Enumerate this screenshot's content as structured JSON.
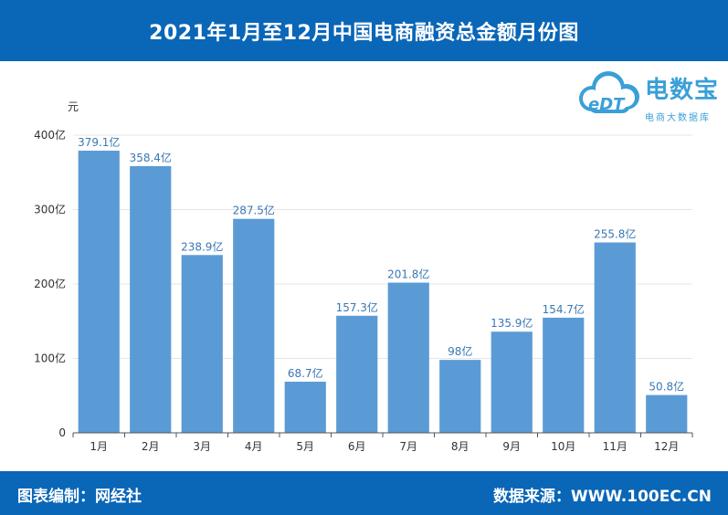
{
  "header": {
    "title": "2021年1月至12月中国电商融资总金额月份图"
  },
  "logo": {
    "brand": "电数宝",
    "tagline": "电商大数据库",
    "mark": "eDT"
  },
  "footer": {
    "credit": "图表编制：网经社",
    "source": "数据来源：WWW.100EC.CN"
  },
  "colors": {
    "header": "#0a66b7",
    "bar": "#5b9bd5",
    "label": "#3a78b5"
  },
  "chart_data": {
    "type": "bar",
    "title": "2021年1月至12月中国电商融资总金额月份图",
    "ylabel": "元",
    "xlabel": "",
    "ylim": [
      0,
      400
    ],
    "yticks": [
      0,
      100,
      200,
      300,
      400
    ],
    "ytick_labels": [
      "0",
      "100亿",
      "200亿",
      "300亿",
      "400亿"
    ],
    "grid": true,
    "categories": [
      "1月",
      "2月",
      "3月",
      "4月",
      "5月",
      "6月",
      "7月",
      "8月",
      "9月",
      "10月",
      "11月",
      "12月"
    ],
    "values": [
      379.1,
      358.4,
      238.9,
      287.5,
      68.7,
      157.3,
      201.8,
      98,
      135.9,
      154.7,
      255.8,
      50.8
    ],
    "data_labels": [
      "379.1亿",
      "358.4亿",
      "238.9亿",
      "287.5亿",
      "68.7亿",
      "157.3亿",
      "201.8亿",
      "98亿",
      "135.9亿",
      "154.7亿",
      "255.8亿",
      "50.8亿"
    ]
  }
}
